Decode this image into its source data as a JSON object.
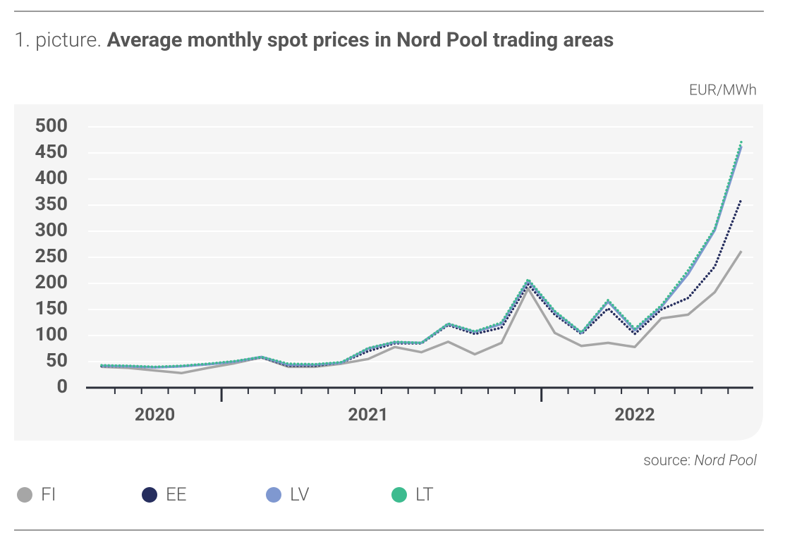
{
  "chart_data": {
    "type": "line",
    "title_prefix": "1. picture.",
    "title": "Average monthly spot prices in Nord Pool trading areas",
    "unit_label": "EUR/MWh",
    "source_label": "source:",
    "source": "Nord Pool",
    "categories": [
      null,
      null,
      "2020",
      null,
      null,
      null,
      null,
      null,
      null,
      null,
      "2021",
      null,
      null,
      null,
      null,
      null,
      null,
      null,
      null,
      null,
      "2022",
      null,
      null,
      null,
      null
    ],
    "ylim": [
      0,
      500
    ],
    "yticks": [
      0,
      50,
      100,
      150,
      200,
      250,
      300,
      350,
      400,
      450,
      500
    ],
    "grid": true,
    "series": [
      {
        "name": "FI",
        "color": "#a6a6a6",
        "style": "solid",
        "values": [
          40,
          38,
          33,
          28,
          38,
          47,
          58,
          40,
          40,
          46,
          55,
          78,
          68,
          88,
          64,
          86,
          190,
          105,
          80,
          86,
          78,
          133,
          140,
          183,
          262
        ]
      },
      {
        "name": "EE",
        "color": "#262e5e",
        "style": "dotted",
        "values": [
          41,
          41,
          39,
          41,
          45,
          50,
          58,
          42,
          42,
          48,
          70,
          85,
          85,
          120,
          103,
          115,
          198,
          140,
          103,
          152,
          103,
          150,
          172,
          232,
          362
        ]
      },
      {
        "name": "LV",
        "color": "#7f98d0",
        "style": "solid",
        "values": [
          42,
          41,
          39,
          41,
          45,
          50,
          59,
          44,
          44,
          48,
          75,
          87,
          86,
          122,
          107,
          122,
          205,
          145,
          105,
          165,
          110,
          155,
          218,
          302,
          463
        ]
      },
      {
        "name": "LT",
        "color": "#3dbb8f",
        "style": "dotted",
        "values": [
          43,
          42,
          40,
          42,
          46,
          51,
          59,
          46,
          45,
          49,
          76,
          88,
          86,
          123,
          108,
          125,
          208,
          147,
          106,
          168,
          113,
          158,
          225,
          305,
          472
        ]
      }
    ]
  }
}
